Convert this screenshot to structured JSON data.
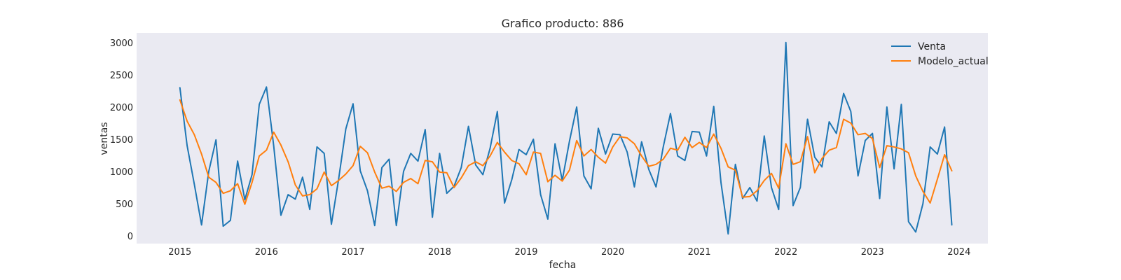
{
  "chart_data": {
    "type": "line",
    "title": "Grafico producto: 886",
    "xlabel": "fecha",
    "ylabel": "ventas",
    "x_start": "2015-01",
    "x_ticks": [
      "2015",
      "2016",
      "2017",
      "2018",
      "2019",
      "2020",
      "2021",
      "2022",
      "2023",
      "2024"
    ],
    "y_ticks": [
      0,
      500,
      1000,
      1500,
      2000,
      2500,
      3000
    ],
    "ylim": [
      -120,
      3150
    ],
    "xlim": [
      "2014-07",
      "2024-05"
    ],
    "grid": false,
    "legend_position": "top-right",
    "background_color": "#eaeaf2",
    "series": [
      {
        "name": "Venta",
        "color": "#1f77b4",
        "values": [
          2300,
          1400,
          800,
          170,
          1000,
          1490,
          150,
          240,
          1160,
          560,
          950,
          2040,
          2310,
          1400,
          320,
          640,
          570,
          910,
          410,
          1380,
          1280,
          180,
          880,
          1660,
          2050,
          1010,
          700,
          160,
          1060,
          1190,
          160,
          1000,
          1280,
          1160,
          1650,
          290,
          1280,
          660,
          770,
          1060,
          1700,
          1100,
          950,
          1360,
          1930,
          510,
          870,
          1340,
          1260,
          1500,
          640,
          260,
          1430,
          860,
          1470,
          2000,
          930,
          730,
          1670,
          1270,
          1580,
          1570,
          1300,
          760,
          1460,
          1030,
          760,
          1380,
          1900,
          1240,
          1170,
          1620,
          1610,
          1240,
          2010,
          830,
          30,
          1110,
          580,
          750,
          540,
          1550,
          750,
          410,
          3000,
          470,
          750,
          1810,
          1220,
          1070,
          1770,
          1590,
          2210,
          1930,
          930,
          1480,
          1590,
          580,
          2000,
          1040,
          2040,
          220,
          60,
          500,
          1380,
          1270,
          1690,
          170
        ]
      },
      {
        "name": "Modelo_actual",
        "color": "#ff7f0e",
        "values": [
          2110,
          1780,
          1570,
          1270,
          910,
          830,
          660,
          700,
          810,
          490,
          830,
          1240,
          1330,
          1610,
          1410,
          1150,
          790,
          620,
          640,
          730,
          990,
          780,
          860,
          960,
          1090,
          1390,
          1290,
          990,
          740,
          770,
          690,
          830,
          890,
          810,
          1170,
          1150,
          990,
          980,
          750,
          900,
          1090,
          1150,
          1090,
          1240,
          1450,
          1300,
          1170,
          1120,
          950,
          1300,
          1280,
          840,
          940,
          850,
          1020,
          1480,
          1240,
          1340,
          1220,
          1130,
          1380,
          1540,
          1520,
          1430,
          1240,
          1080,
          1110,
          1190,
          1360,
          1330,
          1530,
          1370,
          1450,
          1370,
          1580,
          1360,
          1070,
          1020,
          600,
          610,
          700,
          860,
          970,
          740,
          1430,
          1110,
          1150,
          1540,
          980,
          1200,
          1330,
          1370,
          1810,
          1750,
          1570,
          1590,
          1510,
          1060,
          1400,
          1380,
          1350,
          1290,
          930,
          690,
          510,
          880,
          1260,
          1010
        ]
      }
    ]
  }
}
